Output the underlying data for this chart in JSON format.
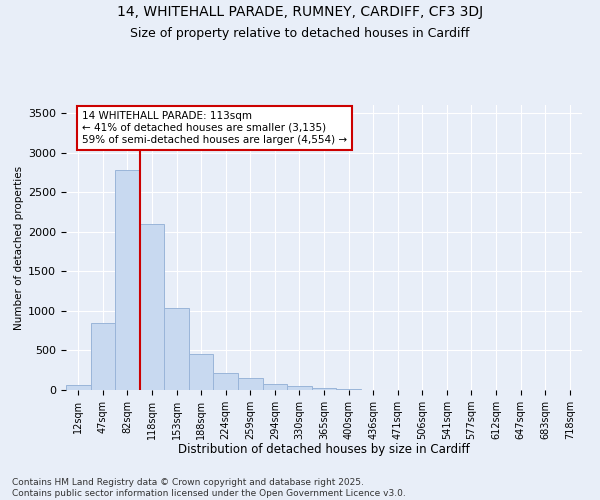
{
  "title_line1": "14, WHITEHALL PARADE, RUMNEY, CARDIFF, CF3 3DJ",
  "title_line2": "Size of property relative to detached houses in Cardiff",
  "xlabel": "Distribution of detached houses by size in Cardiff",
  "ylabel": "Number of detached properties",
  "categories": [
    "12sqm",
    "47sqm",
    "82sqm",
    "118sqm",
    "153sqm",
    "188sqm",
    "224sqm",
    "259sqm",
    "294sqm",
    "330sqm",
    "365sqm",
    "400sqm",
    "436sqm",
    "471sqm",
    "506sqm",
    "541sqm",
    "577sqm",
    "612sqm",
    "647sqm",
    "683sqm",
    "718sqm"
  ],
  "values": [
    60,
    850,
    2780,
    2100,
    1030,
    450,
    220,
    155,
    80,
    50,
    30,
    15,
    5,
    3,
    2,
    1,
    1,
    0,
    0,
    0,
    0
  ],
  "bar_color": "#c8d9f0",
  "bar_edge_color": "#9ab5d9",
  "vline_color": "#cc0000",
  "vline_index": 3,
  "annotation_text": "14 WHITEHALL PARADE: 113sqm\n← 41% of detached houses are smaller (3,135)\n59% of semi-detached houses are larger (4,554) →",
  "box_color": "#cc0000",
  "ylim": [
    0,
    3600
  ],
  "yticks": [
    0,
    500,
    1000,
    1500,
    2000,
    2500,
    3000,
    3500
  ],
  "footer": "Contains HM Land Registry data © Crown copyright and database right 2025.\nContains public sector information licensed under the Open Government Licence v3.0.",
  "bg_color": "#e8eef8",
  "grid_color": "#ffffff"
}
